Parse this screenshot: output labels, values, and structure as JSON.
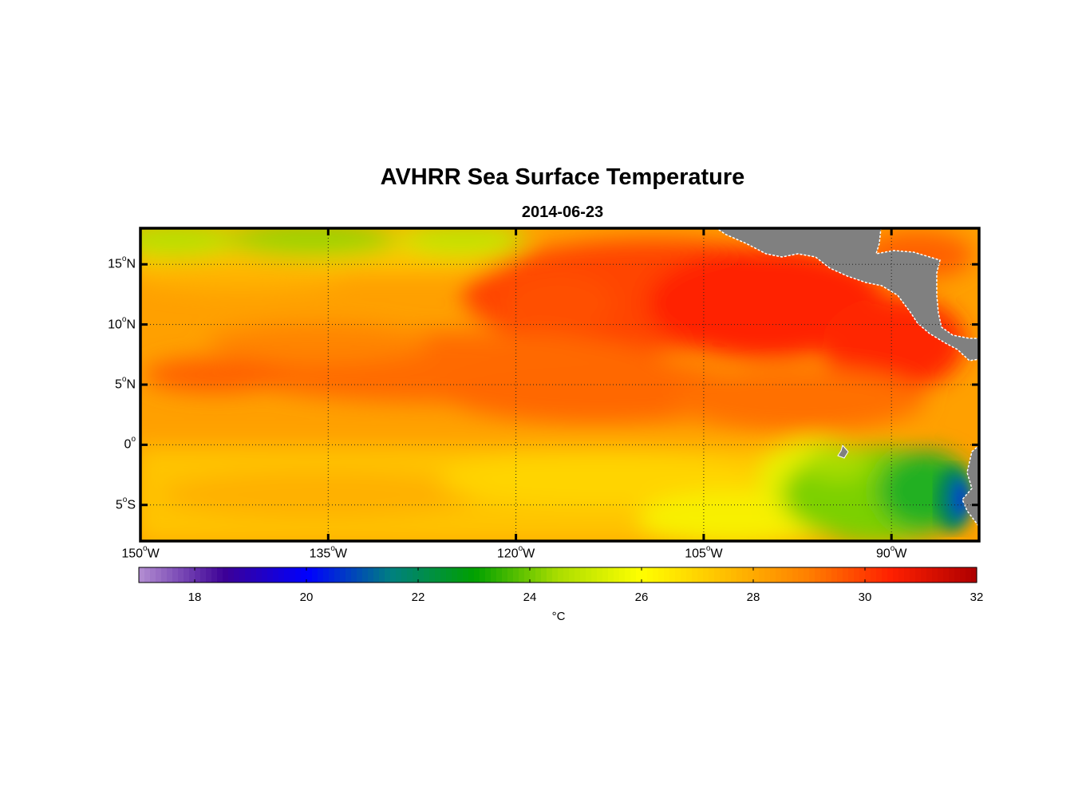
{
  "title": "AVHRR Sea Surface Temperature",
  "subtitle": "2014-06-23",
  "map": {
    "lon_range": [
      -150,
      -83
    ],
    "lat_range": [
      -8,
      18
    ],
    "lat_ticks": [
      {
        "value": 15,
        "deg": "15",
        "hemi": "N"
      },
      {
        "value": 10,
        "deg": "10",
        "hemi": "N"
      },
      {
        "value": 5,
        "deg": "5",
        "hemi": "N"
      },
      {
        "value": 0,
        "deg": "0",
        "hemi": ""
      },
      {
        "value": -5,
        "deg": "5",
        "hemi": "S"
      }
    ],
    "lon_ticks": [
      {
        "value": -150,
        "deg": "150",
        "hemi": "W"
      },
      {
        "value": -135,
        "deg": "135",
        "hemi": "W"
      },
      {
        "value": -120,
        "deg": "120",
        "hemi": "W"
      },
      {
        "value": -105,
        "deg": "105",
        "hemi": "W"
      },
      {
        "value": -90,
        "deg": "90",
        "hemi": "W"
      }
    ],
    "land_color": "#808080",
    "gridlines": true
  },
  "colorbar": {
    "min": 17,
    "max": 32,
    "tick_labels": [
      "18",
      "20",
      "22",
      "24",
      "26",
      "28",
      "30",
      "32"
    ],
    "tick_values": [
      18,
      20,
      22,
      24,
      26,
      28,
      30,
      32
    ],
    "unit": "°C",
    "colormap": [
      "#b08ad0",
      "#3c0096",
      "#0000ff",
      "#008080",
      "#00a000",
      "#aadd00",
      "#ffff00",
      "#ffc000",
      "#ff8000",
      "#ff2000",
      "#b00000"
    ]
  }
}
